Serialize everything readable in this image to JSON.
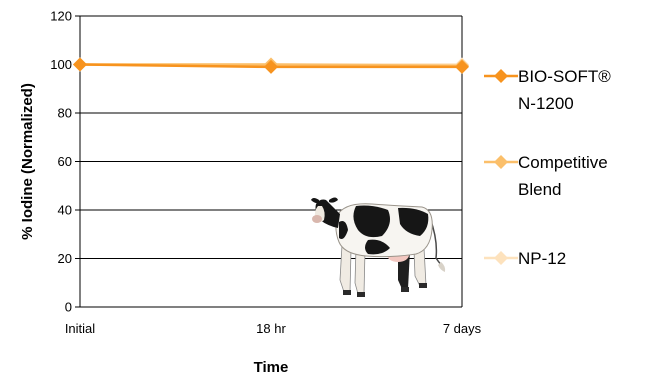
{
  "chart_data": {
    "type": "line",
    "title": "",
    "xlabel": "Time",
    "ylabel": "% Iodine (Normalized)",
    "categories": [
      "Initial",
      "18 hr",
      "7 days"
    ],
    "ylim": [
      0,
      120
    ],
    "yticks": [
      0,
      20,
      40,
      60,
      80,
      100,
      120
    ],
    "grid": "horizontal",
    "legend_position": "right",
    "series": [
      {
        "name": "BIO-SOFT® N-1200",
        "legend_lines": [
          "BIO-SOFT®",
          "N-1200"
        ],
        "values": [
          100,
          99,
          99
        ],
        "color": "#F7931E",
        "marker": "diamond"
      },
      {
        "name": "Competitive Blend",
        "legend_lines": [
          "Competitive",
          "Blend"
        ],
        "values": [
          100,
          100,
          99.5
        ],
        "color": "#FBBF6A",
        "marker": "diamond"
      },
      {
        "name": "NP-12",
        "legend_lines": [
          "NP-12"
        ],
        "values": [
          100,
          100,
          100
        ],
        "color": "#FDE2BD",
        "marker": "diamond"
      }
    ]
  },
  "decoration": {
    "image": "holstein-cow"
  }
}
